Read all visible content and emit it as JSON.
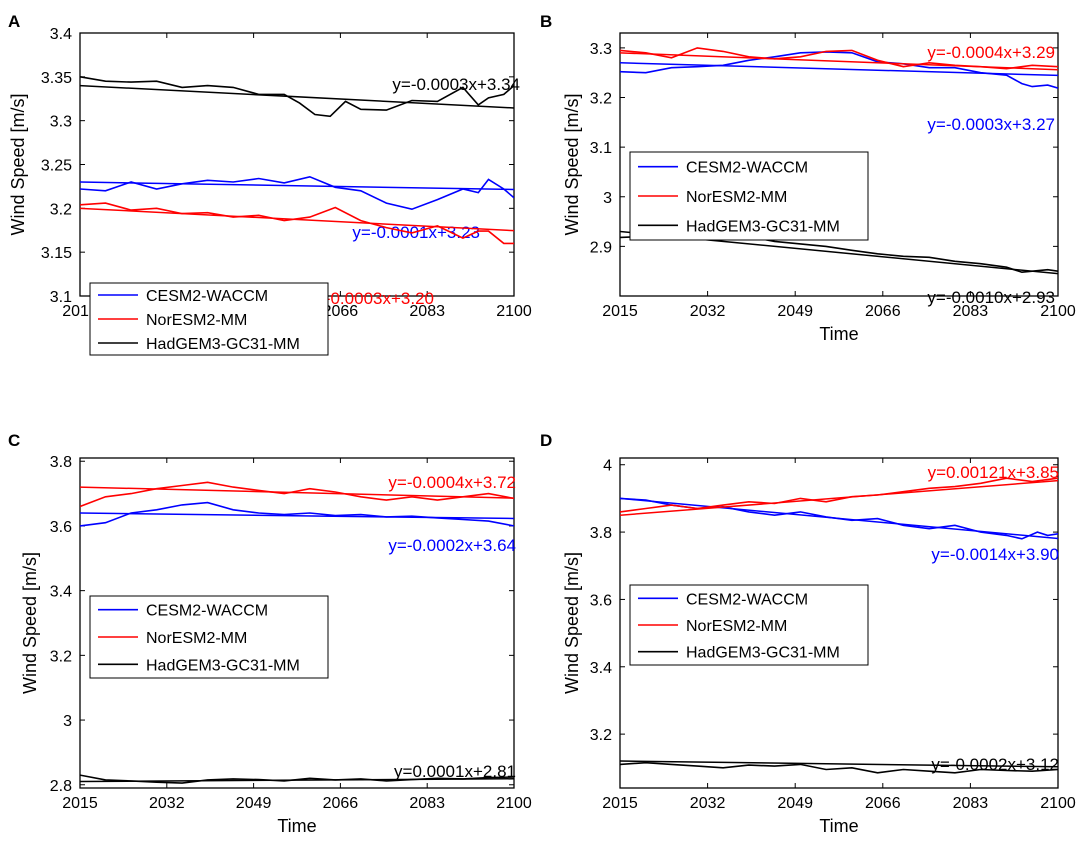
{
  "chart_data": [
    {
      "panel": "A",
      "type": "line",
      "xlabel": "Time",
      "ylabel": "Wind Speed [m/s]",
      "xlim": [
        2015,
        2100
      ],
      "ylim": [
        3.1,
        3.4
      ],
      "xticks": [
        2015,
        2032,
        2049,
        2066,
        2083,
        2100
      ],
      "yticks": [
        "3.1",
        "3.15",
        "3.2",
        "3.25",
        "3.3",
        "3.35",
        "3.4"
      ],
      "legend": {
        "position": "bottom-left",
        "entries": [
          "CESM2-WACCM",
          "NorESM2-MM",
          "HadGEM3-GC31-MM"
        ]
      },
      "series": [
        {
          "name": "CESM2-WACCM",
          "color": "#0000ff",
          "x": [
            2015,
            2020,
            2025,
            2030,
            2035,
            2040,
            2045,
            2050,
            2055,
            2060,
            2065,
            2070,
            2075,
            2080,
            2085,
            2090,
            2093,
            2095,
            2098,
            2100
          ],
          "y": [
            3.222,
            3.22,
            3.23,
            3.222,
            3.228,
            3.232,
            3.23,
            3.234,
            3.229,
            3.236,
            3.224,
            3.22,
            3.206,
            3.199,
            3.21,
            3.222,
            3.218,
            3.233,
            3.222,
            3.212
          ],
          "trend": {
            "slope": -0.0001,
            "intercept": 3.23,
            "label": "y=-0.0001x+3.23"
          }
        },
        {
          "name": "NorESM2-MM",
          "color": "#ff0000",
          "x": [
            2015,
            2020,
            2025,
            2030,
            2035,
            2040,
            2045,
            2050,
            2055,
            2060,
            2065,
            2070,
            2075,
            2080,
            2085,
            2090,
            2093,
            2095,
            2098,
            2100
          ],
          "y": [
            3.204,
            3.206,
            3.198,
            3.2,
            3.194,
            3.195,
            3.19,
            3.192,
            3.186,
            3.19,
            3.201,
            3.186,
            3.178,
            3.172,
            3.18,
            3.166,
            3.174,
            3.174,
            3.16,
            3.16
          ],
          "trend": {
            "slope": -0.0003,
            "intercept": 3.2,
            "label": "y=-0.0003x+3.20"
          }
        },
        {
          "name": "HadGEM3-GC31-MM",
          "color": "#000000",
          "x": [
            2015,
            2020,
            2025,
            2030,
            2035,
            2040,
            2045,
            2050,
            2055,
            2058,
            2061,
            2064,
            2067,
            2070,
            2075,
            2080,
            2085,
            2090,
            2093,
            2095,
            2098,
            2100
          ],
          "y": [
            3.35,
            3.345,
            3.344,
            3.345,
            3.338,
            3.34,
            3.338,
            3.33,
            3.33,
            3.32,
            3.307,
            3.305,
            3.322,
            3.313,
            3.312,
            3.323,
            3.322,
            3.338,
            3.318,
            3.326,
            3.33,
            3.34
          ],
          "trend": {
            "slope": -0.0003,
            "intercept": 3.34,
            "label": "y=-0.0003x+3.34"
          }
        }
      ]
    },
    {
      "panel": "B",
      "type": "line",
      "xlabel": "Time",
      "ylabel": "Wind Speed [m/s]",
      "xlim": [
        2015,
        2100
      ],
      "ylim": [
        2.8,
        3.33
      ],
      "xticks": [
        2015,
        2032,
        2049,
        2066,
        2083,
        2100
      ],
      "yticks": [
        "2.9",
        "3",
        "3.1",
        "3.2",
        "3.3"
      ],
      "legend": {
        "position": "middle-left",
        "entries": [
          "CESM2-WACCM",
          "NorESM2-MM",
          "HadGEM3-GC31-MM"
        ]
      },
      "series": [
        {
          "name": "CESM2-WACCM",
          "color": "#0000ff",
          "x": [
            2015,
            2020,
            2025,
            2030,
            2035,
            2040,
            2045,
            2050,
            2055,
            2060,
            2065,
            2070,
            2075,
            2080,
            2085,
            2090,
            2093,
            2095,
            2098,
            2100
          ],
          "y": [
            3.252,
            3.25,
            3.26,
            3.262,
            3.265,
            3.275,
            3.282,
            3.29,
            3.292,
            3.29,
            3.272,
            3.268,
            3.26,
            3.26,
            3.25,
            3.245,
            3.228,
            3.222,
            3.225,
            3.219
          ],
          "trend": {
            "slope": -0.0003,
            "intercept": 3.27,
            "label": "y=-0.0003x+3.27"
          }
        },
        {
          "name": "NorESM2-MM",
          "color": "#ff0000",
          "x": [
            2015,
            2020,
            2025,
            2030,
            2035,
            2040,
            2045,
            2050,
            2055,
            2060,
            2065,
            2070,
            2075,
            2080,
            2085,
            2090,
            2095,
            2100
          ],
          "y": [
            3.295,
            3.29,
            3.28,
            3.3,
            3.293,
            3.282,
            3.278,
            3.282,
            3.293,
            3.295,
            3.275,
            3.262,
            3.27,
            3.265,
            3.262,
            3.258,
            3.265,
            3.262
          ],
          "trend": {
            "slope": -0.0004,
            "intercept": 3.29,
            "label": "y=-0.0004x+3.29"
          }
        },
        {
          "name": "HadGEM3-GC31-MM",
          "color": "#000000",
          "x": [
            2015,
            2020,
            2025,
            2030,
            2035,
            2040,
            2045,
            2050,
            2055,
            2060,
            2065,
            2070,
            2075,
            2080,
            2085,
            2090,
            2093,
            2095,
            2098,
            2100
          ],
          "y": [
            2.918,
            2.92,
            2.918,
            2.915,
            2.918,
            2.92,
            2.91,
            2.905,
            2.9,
            2.892,
            2.885,
            2.88,
            2.878,
            2.87,
            2.865,
            2.858,
            2.848,
            2.85,
            2.853,
            2.85
          ],
          "trend": {
            "slope": -0.001,
            "intercept": 2.93,
            "label": "y=-0.0010x+2.93"
          }
        }
      ]
    },
    {
      "panel": "C",
      "type": "line",
      "xlabel": "Time",
      "ylabel": "Wind Speed [m/s]",
      "xlim": [
        2015,
        2100
      ],
      "ylim": [
        2.79,
        3.81
      ],
      "xticks": [
        2015,
        2032,
        2049,
        2066,
        2083,
        2100
      ],
      "yticks": [
        "2.8",
        "3",
        "3.2",
        "3.4",
        "3.6",
        "3.8"
      ],
      "legend": {
        "position": "middle-left",
        "entries": [
          "CESM2-WACCM",
          "NorESM2-MM",
          "HadGEM3-GC31-MM"
        ]
      },
      "series": [
        {
          "name": "CESM2-WACCM",
          "color": "#0000ff",
          "x": [
            2015,
            2020,
            2025,
            2030,
            2035,
            2040,
            2045,
            2050,
            2055,
            2060,
            2065,
            2070,
            2075,
            2080,
            2085,
            2090,
            2095,
            2100
          ],
          "y": [
            3.6,
            3.61,
            3.64,
            3.65,
            3.665,
            3.672,
            3.65,
            3.64,
            3.635,
            3.64,
            3.632,
            3.635,
            3.628,
            3.63,
            3.625,
            3.62,
            3.615,
            3.6
          ],
          "trend": {
            "slope": -0.0002,
            "intercept": 3.64,
            "label": "y=-0.0002x+3.64"
          }
        },
        {
          "name": "NorESM2-MM",
          "color": "#ff0000",
          "x": [
            2015,
            2020,
            2025,
            2030,
            2035,
            2040,
            2045,
            2050,
            2055,
            2060,
            2065,
            2070,
            2075,
            2080,
            2085,
            2090,
            2095,
            2100
          ],
          "y": [
            3.66,
            3.69,
            3.7,
            3.715,
            3.725,
            3.735,
            3.72,
            3.71,
            3.7,
            3.715,
            3.705,
            3.69,
            3.68,
            3.69,
            3.68,
            3.69,
            3.7,
            3.685
          ],
          "trend": {
            "slope": -0.0004,
            "intercept": 3.72,
            "label": "y=-0.0004x+3.72"
          }
        },
        {
          "name": "HadGEM3-GC31-MM",
          "color": "#000000",
          "x": [
            2015,
            2020,
            2025,
            2030,
            2035,
            2040,
            2045,
            2050,
            2055,
            2060,
            2065,
            2070,
            2075,
            2080,
            2085,
            2090,
            2095,
            2100
          ],
          "y": [
            2.83,
            2.815,
            2.812,
            2.808,
            2.805,
            2.815,
            2.818,
            2.816,
            2.812,
            2.82,
            2.815,
            2.818,
            2.812,
            2.816,
            2.82,
            2.818,
            2.822,
            2.824
          ],
          "trend": {
            "slope": 0.0001,
            "intercept": 2.81,
            "label": "y=0.0001x+2.81"
          }
        }
      ]
    },
    {
      "panel": "D",
      "type": "line",
      "xlabel": "Time",
      "ylabel": "Wind Speed [m/s]",
      "xlim": [
        2015,
        2100
      ],
      "ylim": [
        3.04,
        4.02
      ],
      "xticks": [
        2015,
        2032,
        2049,
        2066,
        2083,
        2100
      ],
      "yticks": [
        "3.2",
        "3.4",
        "3.6",
        "3.8",
        "4"
      ],
      "legend": {
        "position": "middle-left",
        "entries": [
          "CESM2-WACCM",
          "NorESM2-MM",
          "HadGEM3-GC31-MM"
        ]
      },
      "series": [
        {
          "name": "CESM2-WACCM",
          "color": "#0000ff",
          "x": [
            2015,
            2020,
            2025,
            2030,
            2035,
            2040,
            2045,
            2050,
            2055,
            2060,
            2065,
            2070,
            2075,
            2080,
            2085,
            2090,
            2093,
            2096,
            2098,
            2100
          ],
          "y": [
            3.9,
            3.895,
            3.88,
            3.87,
            3.875,
            3.86,
            3.85,
            3.86,
            3.845,
            3.835,
            3.84,
            3.82,
            3.81,
            3.82,
            3.8,
            3.79,
            3.78,
            3.8,
            3.79,
            3.795
          ],
          "trend": {
            "slope": -0.0014,
            "intercept": 3.9,
            "label": "y=-0.0014x+3.90"
          }
        },
        {
          "name": "NorESM2-MM",
          "color": "#ff0000",
          "x": [
            2015,
            2020,
            2025,
            2030,
            2035,
            2040,
            2045,
            2050,
            2055,
            2060,
            2065,
            2070,
            2075,
            2080,
            2085,
            2090,
            2095,
            2100
          ],
          "y": [
            3.86,
            3.87,
            3.88,
            3.87,
            3.88,
            3.89,
            3.885,
            3.9,
            3.89,
            3.905,
            3.91,
            3.92,
            3.93,
            3.935,
            3.945,
            3.96,
            3.95,
            3.96
          ],
          "trend": {
            "slope": 0.00121,
            "intercept": 3.85,
            "label": "y=0.00121x+3.85"
          }
        },
        {
          "name": "HadGEM3-GC31-MM",
          "color": "#000000",
          "x": [
            2015,
            2020,
            2025,
            2030,
            2035,
            2040,
            2045,
            2050,
            2055,
            2060,
            2065,
            2070,
            2075,
            2080,
            2085,
            2090,
            2095,
            2100
          ],
          "y": [
            3.11,
            3.115,
            3.11,
            3.105,
            3.1,
            3.108,
            3.105,
            3.11,
            3.095,
            3.1,
            3.085,
            3.095,
            3.09,
            3.085,
            3.095,
            3.092,
            3.09,
            3.095
          ],
          "trend": {
            "slope": -0.0002,
            "intercept": 3.12,
            "label": "y=-0.0002x+3.12"
          }
        }
      ]
    }
  ]
}
